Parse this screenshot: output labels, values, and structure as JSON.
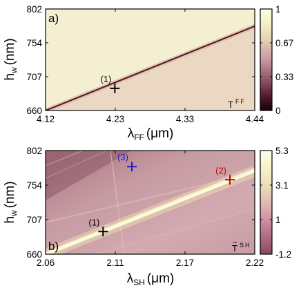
{
  "chart_data": [
    {
      "type": "heatmap",
      "panel_label": "a)",
      "xlabel": "λ",
      "xlabel_sub": "FF",
      "xlabel_unit": "(μm)",
      "ylabel": "h",
      "ylabel_sub": "w",
      "ylabel_unit": "(nm)",
      "xlim": [
        4.12,
        4.44
      ],
      "ylim": [
        660,
        802
      ],
      "xticks": [
        "4.12",
        "4.23",
        "4.33",
        "4.44"
      ],
      "yticks": [
        "660",
        "707",
        "754",
        "802"
      ],
      "colorbar": {
        "range": [
          0,
          1
        ],
        "ticks": [
          "0",
          "0.33",
          "0.67",
          "1"
        ]
      },
      "corner_label": "T",
      "corner_label_sup": "FF",
      "resonance_line": [
        [
          4.12,
          660
        ],
        [
          4.44,
          778
        ]
      ],
      "markers": [
        {
          "label": "(1)",
          "x": 4.226,
          "y": 691,
          "color": "#000000"
        }
      ]
    },
    {
      "type": "heatmap",
      "panel_label": "b)",
      "xlabel": "λ",
      "xlabel_sub": "SH",
      "xlabel_unit": "(μm)",
      "ylabel": "h",
      "ylabel_sub": "w",
      "ylabel_unit": "(nm)",
      "xlim": [
        2.06,
        2.22
      ],
      "ylim": [
        660,
        802
      ],
      "xticks": [
        "2.06",
        "2.11",
        "2.17",
        "2.22"
      ],
      "yticks": [
        "660",
        "707",
        "754",
        "802"
      ],
      "colorbar": {
        "range": [
          -1.2,
          5.3
        ],
        "ticks": [
          "-1.2",
          "1",
          "3.1",
          "5.3"
        ]
      },
      "corner_label": "T",
      "corner_label_sup": "SH",
      "resonance_line": [
        [
          2.06,
          660
        ],
        [
          2.22,
          775
        ]
      ],
      "markers": [
        {
          "label": "(1)",
          "x": 2.104,
          "y": 691,
          "color": "#000000"
        },
        {
          "label": "(2)",
          "x": 2.201,
          "y": 762,
          "color": "#c00000"
        },
        {
          "label": "(3)",
          "x": 2.126,
          "y": 780,
          "color": "#1a1ad6"
        }
      ]
    }
  ]
}
